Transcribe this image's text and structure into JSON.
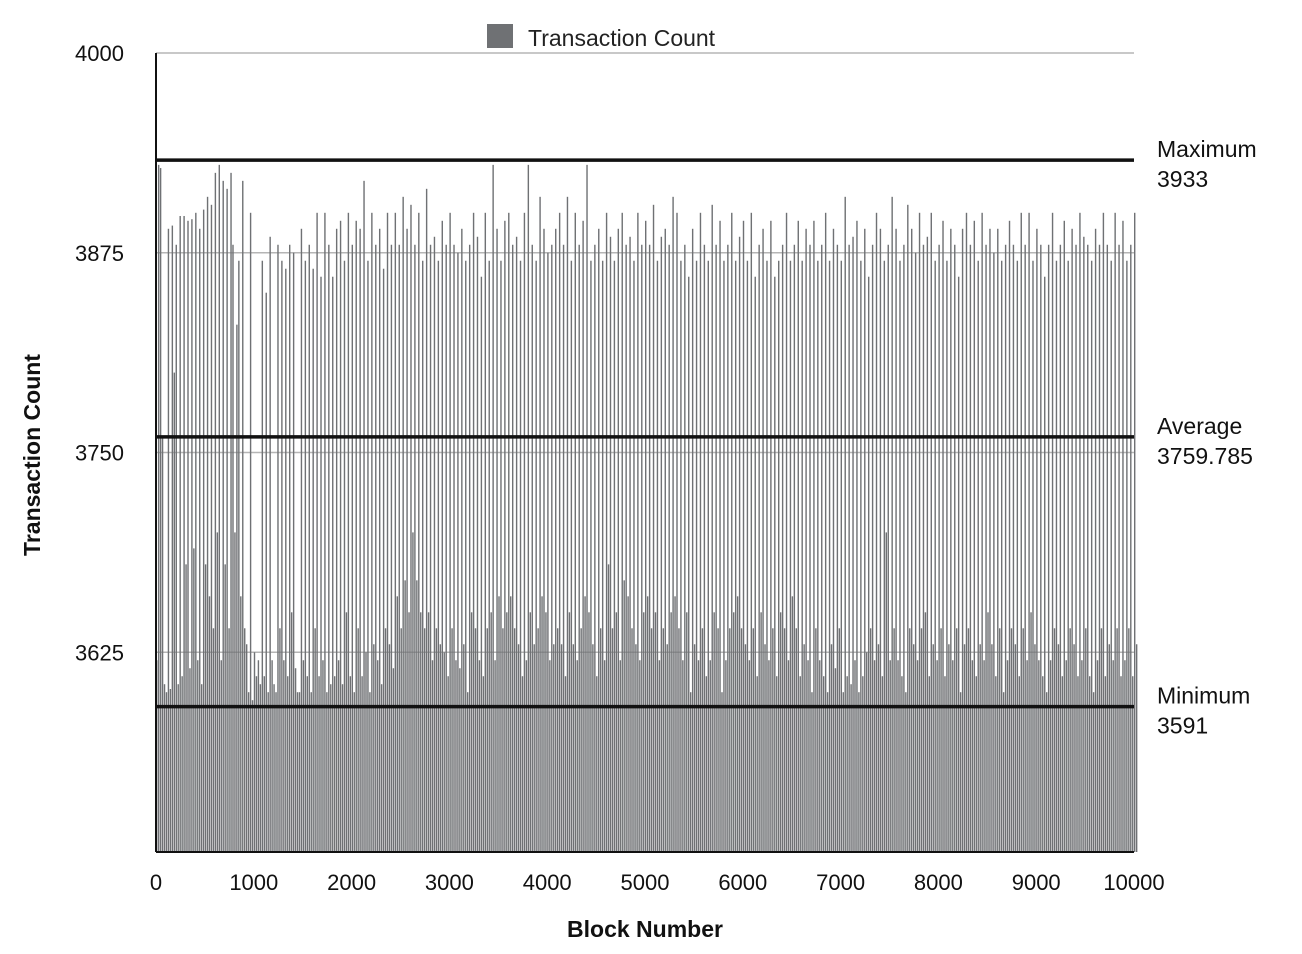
{
  "chart_data": {
    "type": "bar",
    "title": "",
    "xlabel": "Block Number",
    "ylabel": "Transaction Count",
    "xlim": [
      0,
      10000
    ],
    "ylim": [
      3500,
      4000
    ],
    "x_ticks": [
      "0",
      "1000",
      "2000",
      "3000",
      "4000",
      "5000",
      "6000",
      "7000",
      "8000",
      "9000",
      "10000"
    ],
    "y_ticks": [
      "3625",
      "3750",
      "3875",
      "4000"
    ],
    "grid": "horizontal",
    "legend": {
      "placement": "top-center",
      "entries": [
        "Transaction Count"
      ]
    },
    "colors": {
      "bars": "#6f7174",
      "reference_lines": "#111111",
      "grid": "#b5b5b5"
    },
    "series": [
      {
        "name": "Transaction Count",
        "x_start": 0,
        "x_step": 20,
        "values": [
          3620,
          3930,
          3928,
          3760,
          3605,
          3600,
          3890,
          3602,
          3892,
          3800,
          3880,
          3605,
          3898,
          3610,
          3898,
          3680,
          3895,
          3615,
          3896,
          3690,
          3900,
          3620,
          3890,
          3605,
          3902,
          3680,
          3910,
          3660,
          3905,
          3640,
          3925,
          3700,
          3930,
          3620,
          3920,
          3680,
          3915,
          3640,
          3925,
          3880,
          3700,
          3830,
          3870,
          3660,
          3920,
          3640,
          3630,
          3600,
          3900,
          3595,
          3625,
          3610,
          3620,
          3605,
          3870,
          3610,
          3850,
          3600,
          3885,
          3620,
          3605,
          3600,
          3880,
          3640,
          3870,
          3620,
          3865,
          3610,
          3880,
          3650,
          3875,
          3615,
          3600,
          3600,
          3890,
          3620,
          3870,
          3610,
          3880,
          3600,
          3865,
          3640,
          3900,
          3610,
          3860,
          3620,
          3900,
          3600,
          3880,
          3605,
          3860,
          3610,
          3890,
          3620,
          3895,
          3605,
          3870,
          3650,
          3900,
          3610,
          3880,
          3600,
          3895,
          3640,
          3890,
          3610,
          3920,
          3625,
          3870,
          3600,
          3900,
          3630,
          3880,
          3620,
          3890,
          3605,
          3865,
          3640,
          3900,
          3630,
          3880,
          3615,
          3900,
          3660,
          3880,
          3640,
          3910,
          3670,
          3890,
          3650,
          3905,
          3700,
          3880,
          3670,
          3900,
          3650,
          3870,
          3640,
          3915,
          3650,
          3880,
          3620,
          3885,
          3640,
          3870,
          3630,
          3895,
          3625,
          3880,
          3610,
          3900,
          3640,
          3880,
          3620,
          3875,
          3615,
          3890,
          3630,
          3870,
          3600,
          3880,
          3650,
          3900,
          3640,
          3885,
          3620,
          3860,
          3610,
          3900,
          3640,
          3870,
          3650,
          3930,
          3620,
          3890,
          3660,
          3870,
          3640,
          3895,
          3650,
          3900,
          3660,
          3880,
          3640,
          3885,
          3630,
          3870,
          3610,
          3900,
          3620,
          3930,
          3650,
          3880,
          3630,
          3870,
          3640,
          3910,
          3660,
          3890,
          3650,
          3875,
          3620,
          3880,
          3630,
          3890,
          3640,
          3900,
          3630,
          3880,
          3610,
          3910,
          3650,
          3870,
          3630,
          3900,
          3620,
          3880,
          3640,
          3895,
          3660,
          3930,
          3650,
          3870,
          3630,
          3880,
          3610,
          3890,
          3640,
          3870,
          3620,
          3900,
          3680,
          3885,
          3640,
          3870,
          3650,
          3890,
          3620,
          3900,
          3670,
          3880,
          3660,
          3885,
          3640,
          3870,
          3630,
          3900,
          3620,
          3880,
          3650,
          3895,
          3660,
          3880,
          3640,
          3905,
          3650,
          3870,
          3620,
          3885,
          3640,
          3890,
          3630,
          3880,
          3650,
          3910,
          3660,
          3900,
          3640,
          3870,
          3620,
          3880,
          3650,
          3860,
          3600,
          3890,
          3630,
          3870,
          3620,
          3900,
          3640,
          3880,
          3610,
          3870,
          3620,
          3905,
          3650,
          3880,
          3640,
          3895,
          3600,
          3870,
          3620,
          3880,
          3640,
          3900,
          3650,
          3870,
          3660,
          3885,
          3640,
          3895,
          3630,
          3870,
          3620,
          3900,
          3640,
          3860,
          3610,
          3880,
          3650,
          3890,
          3630,
          3870,
          3620,
          3895,
          3640,
          3860,
          3610,
          3870,
          3650,
          3880,
          3640,
          3900,
          3620,
          3870,
          3660,
          3880,
          3640,
          3895,
          3610,
          3870,
          3630,
          3890,
          3620,
          3880,
          3600,
          3895,
          3640,
          3870,
          3620,
          3880,
          3610,
          3900,
          3600,
          3870,
          3630,
          3890,
          3615,
          3880,
          3640,
          3870,
          3600,
          3910,
          3610,
          3880,
          3605,
          3885,
          3620,
          3895,
          3600,
          3870,
          3610,
          3890,
          3625,
          3860,
          3640,
          3880,
          3620,
          3900,
          3630,
          3890,
          3610,
          3870,
          3700,
          3880,
          3620,
          3910,
          3640,
          3890,
          3620,
          3870,
          3610,
          3880,
          3600,
          3905,
          3640,
          3890,
          3630,
          3875,
          3620,
          3900,
          3640,
          3880,
          3650,
          3885,
          3610,
          3900,
          3630,
          3870,
          3620,
          3880,
          3640,
          3895,
          3610,
          3870,
          3630,
          3890,
          3620,
          3880,
          3640,
          3860,
          3600,
          3890,
          3630,
          3900,
          3640,
          3880,
          3620,
          3895,
          3610,
          3870,
          3630,
          3900,
          3620,
          3880,
          3650,
          3890,
          3630,
          3875,
          3610,
          3890,
          3640,
          3870,
          3600,
          3880,
          3620,
          3895,
          3640,
          3880,
          3630,
          3870,
          3610,
          3900,
          3640,
          3880,
          3620,
          3900,
          3650,
          3870,
          3630,
          3890,
          3620,
          3880,
          3610,
          3860,
          3600,
          3880,
          3620,
          3900,
          3640,
          3870,
          3630,
          3880,
          3610,
          3895,
          3620,
          3870,
          3640,
          3890,
          3630,
          3880,
          3610,
          3900,
          3620,
          3885,
          3640,
          3880,
          3610,
          3870,
          3600,
          3890,
          3620,
          3880,
          3640,
          3900,
          3610,
          3880,
          3630,
          3870,
          3620,
          3900,
          3640,
          3880,
          3610,
          3895,
          3620,
          3870,
          3640,
          3880,
          3610,
          3900,
          3630
        ]
      }
    ],
    "reference_lines": [
      {
        "label": "Maximum",
        "value_text": "3933",
        "value": 3933
      },
      {
        "label": "Average",
        "value_text": "3759.785",
        "value": 3759.785
      },
      {
        "label": "Minimum",
        "value_text": "3591",
        "value": 3591
      }
    ]
  }
}
